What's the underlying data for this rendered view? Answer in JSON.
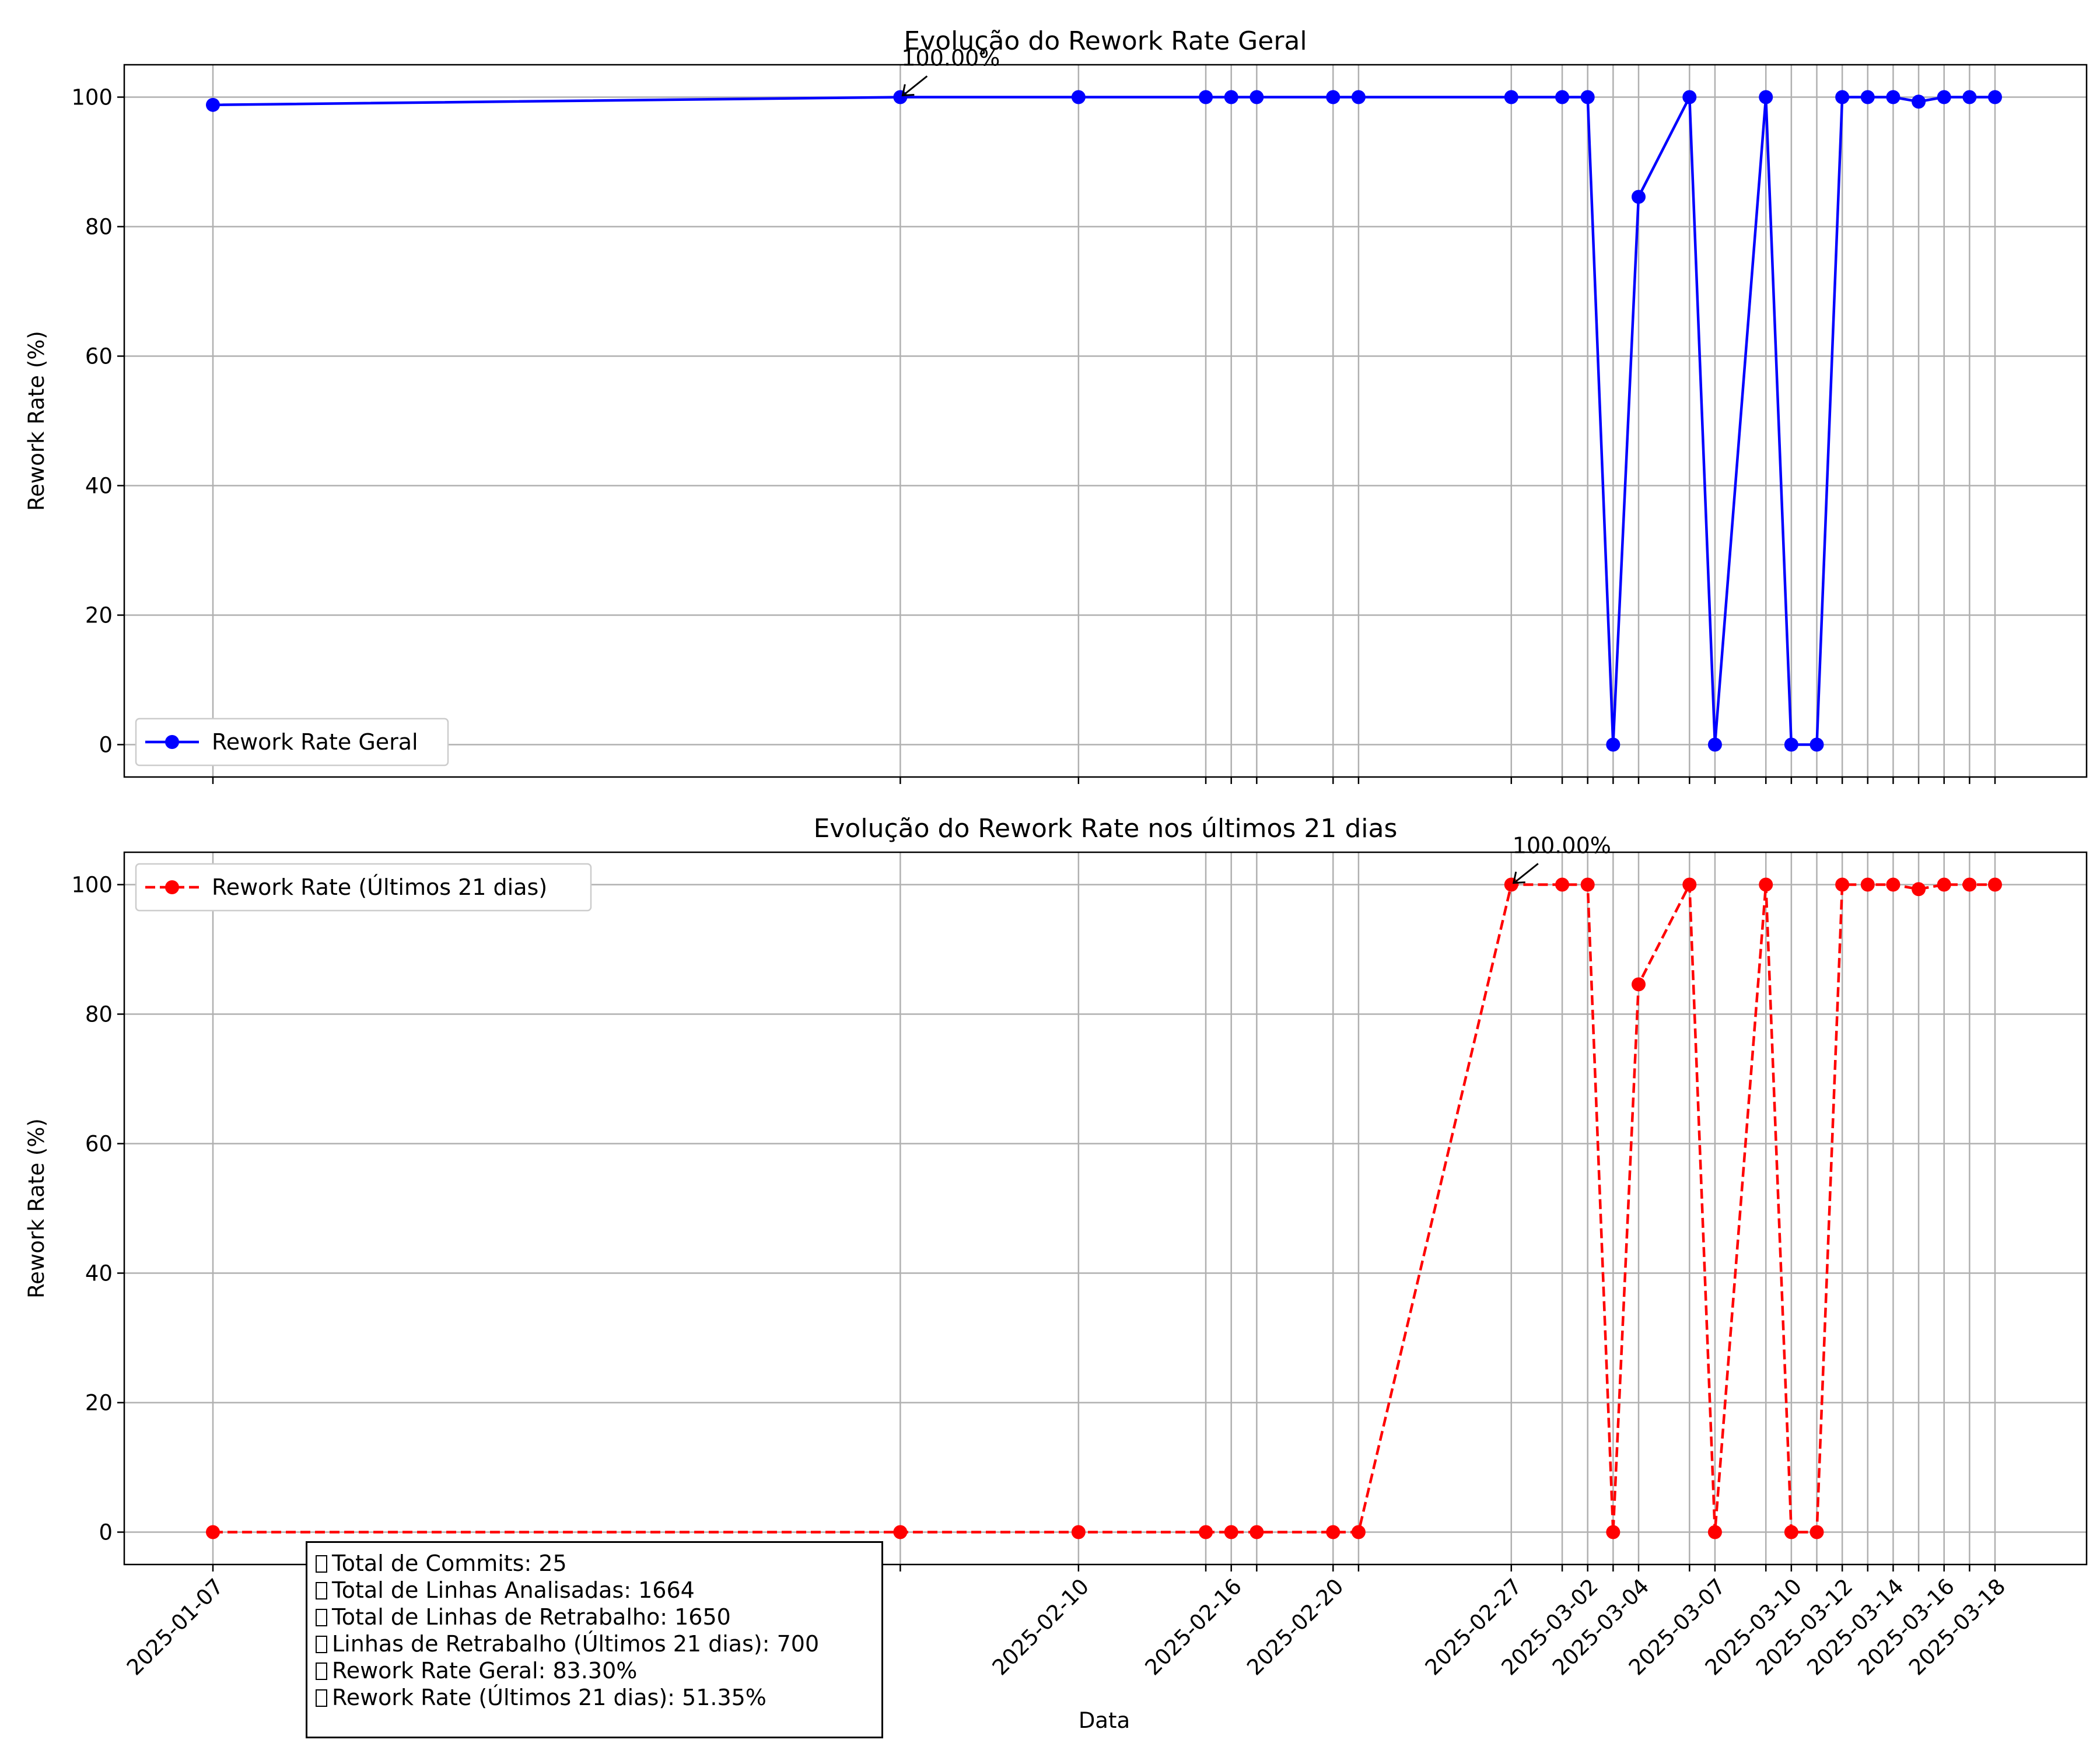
{
  "chart_data": [
    {
      "type": "line",
      "title": "Evolução do Rework Rate Geral",
      "xlabel": "",
      "ylabel": "Rework Rate (%)",
      "ylim": [
        -5,
        105
      ],
      "yticks": [
        0,
        20,
        40,
        60,
        80,
        100
      ],
      "grid": true,
      "legend_position": "lower-left",
      "color": "#0000ff",
      "line_style": "solid",
      "marker": "circle",
      "series": [
        {
          "name": "Rework Rate Geral",
          "x": [
            "2025-01-07",
            "2025-02-03",
            "2025-02-10",
            "2025-02-15",
            "2025-02-16",
            "2025-02-17",
            "2025-02-20",
            "2025-02-21",
            "2025-02-27",
            "2025-03-01",
            "2025-03-02",
            "2025-03-03",
            "2025-03-04",
            "2025-03-06",
            "2025-03-07",
            "2025-03-09",
            "2025-03-10",
            "2025-03-11",
            "2025-03-12",
            "2025-03-13",
            "2025-03-14",
            "2025-03-15",
            "2025-03-16",
            "2025-03-17",
            "2025-03-18"
          ],
          "y": [
            98.8,
            100,
            100,
            100,
            100,
            100,
            100,
            100,
            100,
            100,
            100,
            0,
            84.6,
            100,
            0,
            100,
            0,
            0,
            100,
            100,
            100,
            99.3,
            100,
            100,
            100
          ]
        }
      ],
      "annotation": {
        "text": "100.00%",
        "x": "2025-02-03",
        "y": 100
      }
    },
    {
      "type": "line",
      "title": "Evolução do Rework Rate nos últimos 21 dias",
      "xlabel": "Data",
      "ylabel": "Rework Rate (%)",
      "ylim": [
        -5,
        105
      ],
      "yticks": [
        0,
        20,
        40,
        60,
        80,
        100
      ],
      "grid": true,
      "legend_position": "upper-left",
      "color": "#ff0000",
      "line_style": "dashed",
      "marker": "circle",
      "xticks": [
        "2025-01-07",
        "2025-02-10",
        "2025-02-16",
        "2025-02-20",
        "2025-02-27",
        "2025-03-02",
        "2025-03-04",
        "2025-03-07",
        "2025-03-10",
        "2025-03-12",
        "2025-03-14",
        "2025-03-16",
        "2025-03-18"
      ],
      "series": [
        {
          "name": "Rework Rate (Últimos 21 dias)",
          "x": [
            "2025-01-07",
            "2025-02-03",
            "2025-02-10",
            "2025-02-15",
            "2025-02-16",
            "2025-02-17",
            "2025-02-20",
            "2025-02-21",
            "2025-02-27",
            "2025-03-01",
            "2025-03-02",
            "2025-03-03",
            "2025-03-04",
            "2025-03-06",
            "2025-03-07",
            "2025-03-09",
            "2025-03-10",
            "2025-03-11",
            "2025-03-12",
            "2025-03-13",
            "2025-03-14",
            "2025-03-15",
            "2025-03-16",
            "2025-03-17",
            "2025-03-18"
          ],
          "y": [
            0,
            0,
            0,
            0,
            0,
            0,
            0,
            0,
            100,
            100,
            100,
            0,
            84.6,
            100,
            0,
            100,
            0,
            0,
            100,
            100,
            100,
            99.3,
            100,
            100,
            100
          ]
        }
      ],
      "annotation": {
        "text": "100.00%",
        "x": "2025-02-27",
        "y": 100
      }
    }
  ],
  "stats": [
    "Total de Commits: 25",
    "Total de Linhas Analisadas: 1664",
    "Total de Linhas de Retrabalho: 1650",
    "Linhas de Retrabalho (Últimos 21 dias): 700",
    "Rework Rate Geral: 83.30%",
    "Rework Rate (Últimos 21 dias): 51.35%"
  ]
}
